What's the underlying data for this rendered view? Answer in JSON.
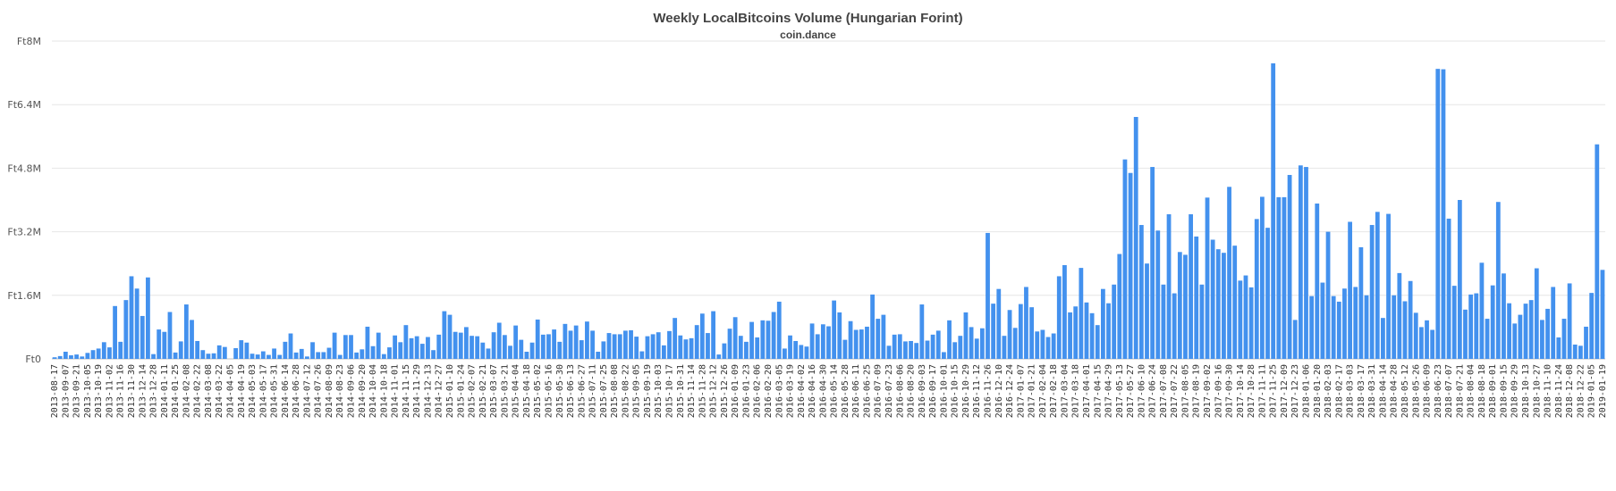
{
  "chart_data": {
    "type": "bar",
    "title": "Weekly LocalBitcoins Volume (Hungarian Forint)",
    "subtitle": "coin.dance",
    "xlabel": "",
    "ylabel": "",
    "y_tick_values": [
      0,
      1600000,
      3200000,
      4800000,
      6400000,
      8000000
    ],
    "y_tick_labels": [
      "Ft0",
      "Ft1.6M",
      "Ft3.2M",
      "Ft4.8M",
      "Ft6.4M",
      "Ft8M"
    ],
    "ylim": [
      0,
      8000000
    ],
    "grid": true,
    "bar_color": "#4391ee",
    "x_tick_labels": [
      "2013-08-17",
      "2013-09-07",
      "2013-09-21",
      "2013-10-05",
      "2013-10-19",
      "2013-11-02",
      "2013-11-16",
      "2013-11-30",
      "2013-12-14",
      "2013-12-28",
      "2014-01-11",
      "2014-01-25",
      "2014-02-08",
      "2014-02-22",
      "2014-03-08",
      "2014-03-22",
      "2014-04-05",
      "2014-04-19",
      "2014-05-03",
      "2014-05-17",
      "2014-05-31",
      "2014-06-14",
      "2014-06-28",
      "2014-07-12",
      "2014-07-26",
      "2014-08-09",
      "2014-08-23",
      "2014-09-06",
      "2014-09-20",
      "2014-10-04",
      "2014-10-18",
      "2014-11-01",
      "2014-11-15",
      "2014-11-29",
      "2014-12-13",
      "2014-12-27",
      "2015-01-10",
      "2015-01-24",
      "2015-02-07",
      "2015-02-21",
      "2015-03-07",
      "2015-03-21",
      "2015-04-04",
      "2015-04-18",
      "2015-05-02",
      "2015-05-16",
      "2015-05-30",
      "2015-06-13",
      "2015-06-27",
      "2015-07-11",
      "2015-07-25",
      "2015-08-08",
      "2015-08-22",
      "2015-09-05",
      "2015-09-19",
      "2015-10-03",
      "2015-10-17",
      "2015-10-31",
      "2015-11-14",
      "2015-11-28",
      "2015-12-12",
      "2015-12-26",
      "2016-01-09",
      "2016-01-23",
      "2016-02-06",
      "2016-02-20",
      "2016-03-05",
      "2016-03-19",
      "2016-04-02",
      "2016-04-16",
      "2016-04-30",
      "2016-05-14",
      "2016-05-28",
      "2016-06-11",
      "2016-06-25",
      "2016-07-09",
      "2016-07-23",
      "2016-08-06",
      "2016-08-20",
      "2016-09-03",
      "2016-09-17",
      "2016-10-01",
      "2016-10-15",
      "2016-10-29",
      "2016-11-12",
      "2016-11-26",
      "2016-12-10",
      "2016-12-24",
      "2017-01-07",
      "2017-01-21",
      "2017-02-04",
      "2017-02-18",
      "2017-03-04",
      "2017-03-18",
      "2017-04-01",
      "2017-04-15",
      "2017-04-29",
      "2017-05-13",
      "2017-05-27",
      "2017-06-10",
      "2017-06-24",
      "2017-07-08",
      "2017-07-22",
      "2017-08-05",
      "2017-08-19",
      "2017-09-02",
      "2017-09-16",
      "2017-09-30",
      "2017-10-14",
      "2017-10-28",
      "2017-11-11",
      "2017-11-25",
      "2017-12-09",
      "2017-12-23",
      "2018-01-06",
      "2018-01-20",
      "2018-02-03",
      "2018-02-17",
      "2018-03-03",
      "2018-03-17",
      "2018-03-31",
      "2018-04-14",
      "2018-04-28",
      "2018-05-12",
      "2018-05-26",
      "2018-06-09",
      "2018-06-23",
      "2018-07-07",
      "2018-07-21",
      "2018-08-04",
      "2018-08-18",
      "2018-09-01",
      "2018-09-15",
      "2018-09-29",
      "2018-10-13",
      "2018-10-27",
      "2018-11-10",
      "2018-11-24",
      "2018-12-08",
      "2018-12-22",
      "2019-01-05",
      "2019-01-19"
    ],
    "values": [
      40000,
      70000,
      180000,
      90000,
      110000,
      60000,
      150000,
      220000,
      260000,
      420000,
      290000,
      1330000,
      430000,
      1480000,
      2080000,
      1770000,
      1080000,
      2050000,
      120000,
      740000,
      680000,
      1180000,
      160000,
      440000,
      1370000,
      980000,
      450000,
      220000,
      130000,
      140000,
      340000,
      300000,
      0,
      270000,
      470000,
      410000,
      130000,
      110000,
      190000,
      100000,
      260000,
      100000,
      430000,
      640000,
      160000,
      250000,
      60000,
      420000,
      170000,
      170000,
      280000,
      660000,
      100000,
      600000,
      600000,
      160000,
      240000,
      810000,
      320000,
      660000,
      120000,
      290000,
      590000,
      420000,
      850000,
      520000,
      570000,
      380000,
      550000,
      220000,
      610000,
      1200000,
      1110000,
      680000,
      660000,
      800000,
      580000,
      570000,
      410000,
      260000,
      670000,
      910000,
      600000,
      330000,
      840000,
      480000,
      180000,
      410000,
      990000,
      610000,
      620000,
      740000,
      430000,
      880000,
      710000,
      840000,
      470000,
      940000,
      710000,
      180000,
      440000,
      650000,
      620000,
      620000,
      710000,
      720000,
      560000,
      190000,
      570000,
      620000,
      670000,
      340000,
      700000,
      1030000,
      590000,
      490000,
      520000,
      850000,
      1140000,
      650000,
      1200000,
      110000,
      390000,
      760000,
      1050000,
      580000,
      430000,
      930000,
      540000,
      970000,
      960000,
      1180000,
      1440000,
      260000,
      590000,
      450000,
      350000,
      310000,
      890000,
      620000,
      870000,
      820000,
      1470000,
      1170000,
      480000,
      950000,
      730000,
      740000,
      810000,
      1620000,
      1010000,
      1110000,
      330000,
      610000,
      620000,
      440000,
      450000,
      400000,
      1370000,
      460000,
      610000,
      710000,
      170000,
      970000,
      420000,
      580000,
      1170000,
      800000,
      510000,
      770000,
      3170000,
      1390000,
      1760000,
      580000,
      1230000,
      780000,
      1380000,
      1810000,
      1300000,
      690000,
      730000,
      550000,
      640000,
      2080000,
      2360000,
      1170000,
      1320000,
      2290000,
      1420000,
      1150000,
      850000,
      1760000,
      1400000,
      1870000,
      2640000,
      5020000,
      4680000,
      6090000,
      3370000,
      2400000,
      4830000,
      3230000,
      1870000,
      3640000,
      1650000,
      2690000,
      2620000,
      3640000,
      3080000,
      1870000,
      4060000,
      3000000,
      2760000,
      2670000,
      4330000,
      2850000,
      1970000,
      2100000,
      1800000,
      3520000,
      4080000,
      3300000,
      7440000,
      4070000,
      4070000,
      4630000,
      980000,
      4870000,
      4830000,
      1580000,
      3910000,
      1920000,
      3200000,
      1580000,
      1440000,
      1770000,
      3450000,
      1810000,
      2810000,
      1600000,
      3370000,
      3700000,
      1030000,
      3650000,
      1600000,
      2160000,
      1450000,
      1960000,
      1160000,
      800000,
      970000,
      730000,
      7300000,
      7290000,
      3530000,
      1840000,
      4000000,
      1240000,
      1620000,
      1650000,
      2420000,
      1010000,
      1850000,
      3950000,
      2150000,
      1400000,
      890000,
      1110000,
      1390000,
      1480000,
      2280000,
      980000,
      1260000,
      1810000,
      540000,
      1010000,
      1900000,
      360000,
      330000,
      810000,
      1660000,
      5400000,
      2240000
    ]
  }
}
